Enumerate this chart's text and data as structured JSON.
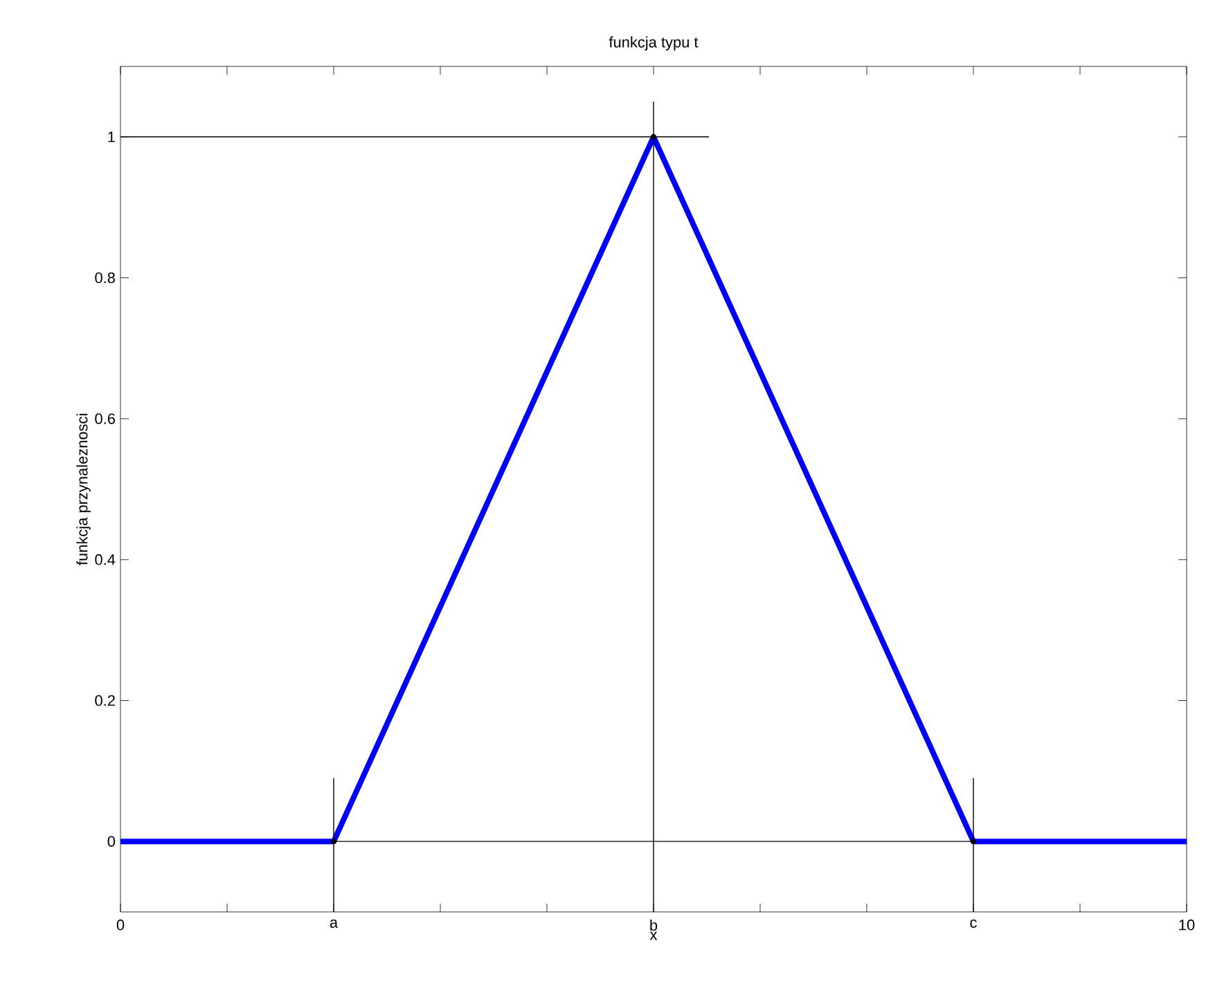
{
  "chart_data": {
    "type": "line",
    "title": "funkcja typu t",
    "xlabel": "x",
    "ylabel": "funkcja przynaleznosci",
    "xlim": [
      0,
      10
    ],
    "ylim": [
      -0.1,
      1.1
    ],
    "xticks": [
      0,
      {
        "value": 1,
        "label": null
      },
      {
        "value": 2,
        "label": "a"
      },
      {
        "value": 3,
        "label": null
      },
      {
        "value": 4,
        "label": null
      },
      {
        "value": 5,
        "label": "b"
      },
      {
        "value": 6,
        "label": null
      },
      {
        "value": 7,
        "label": null
      },
      {
        "value": 8,
        "label": "c"
      },
      {
        "value": 9,
        "label": null
      },
      10
    ],
    "yticks": [
      0,
      0.2,
      0.4,
      0.6,
      0.8,
      1
    ],
    "grid": false,
    "marker": "none",
    "line_style": "solid",
    "series": [
      {
        "color": "#0000ff",
        "x": [
          0,
          2,
          5,
          8,
          10
        ],
        "values": [
          0,
          0,
          1,
          0,
          0
        ]
      },
      {
        "color": "#000000",
        "x": [
          0,
          5.52
        ],
        "values": [
          1,
          1
        ]
      },
      {
        "color": "#000000",
        "x": [
          2,
          8
        ],
        "values": [
          0,
          0
        ]
      },
      {
        "type": "scatter",
        "marker": "circle",
        "color": "#000000",
        "x": [
          2,
          5,
          8
        ],
        "values": [
          0,
          1,
          0
        ],
        "errors": [
          [
            -0.1,
            0.09
          ],
          [
            -0.1,
            1.05
          ],
          [
            -0.1,
            0.09
          ]
        ]
      }
    ]
  }
}
